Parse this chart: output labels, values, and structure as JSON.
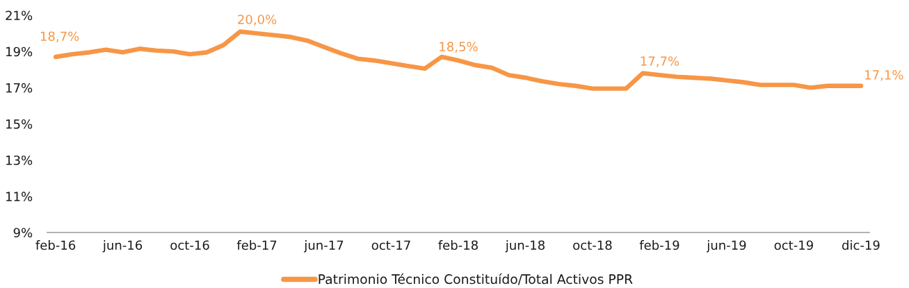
{
  "chart_data": {
    "type": "line",
    "categories": [
      "feb-16",
      null,
      null,
      null,
      "jun-16",
      null,
      null,
      null,
      "oct-16",
      null,
      null,
      null,
      "feb-17",
      null,
      null,
      null,
      "jun-17",
      null,
      null,
      null,
      "oct-17",
      null,
      null,
      null,
      "feb-18",
      null,
      null,
      null,
      "jun-18",
      null,
      null,
      null,
      "oct-18",
      null,
      null,
      null,
      "feb-19",
      null,
      null,
      null,
      "jun-19",
      null,
      null,
      null,
      "oct-19",
      null,
      null,
      null,
      "dic-19"
    ],
    "series": [
      {
        "name": "Patrimonio Técnico Constituído/Total Activos PPR",
        "color": "#f79646",
        "values": [
          18.7,
          18.85,
          18.95,
          19.1,
          18.95,
          19.15,
          19.05,
          19.0,
          18.85,
          18.95,
          19.35,
          20.1,
          20.0,
          19.9,
          19.8,
          19.6,
          19.25,
          18.9,
          18.6,
          18.5,
          18.35,
          18.2,
          18.05,
          18.7,
          18.5,
          18.25,
          18.1,
          17.7,
          17.55,
          17.35,
          17.2,
          17.1,
          16.95,
          16.95,
          16.95,
          17.8,
          17.7,
          17.6,
          17.55,
          17.5,
          17.4,
          17.3,
          17.15,
          17.15,
          17.15,
          17.0,
          17.1,
          17.1,
          17.1
        ],
        "value_labels": [
          "18,7%",
          null,
          null,
          null,
          null,
          null,
          null,
          null,
          null,
          null,
          null,
          null,
          "20,0%",
          null,
          null,
          null,
          null,
          null,
          null,
          null,
          null,
          null,
          null,
          null,
          "18,5%",
          null,
          null,
          null,
          null,
          null,
          null,
          null,
          null,
          null,
          null,
          null,
          "17,7%",
          null,
          null,
          null,
          null,
          null,
          null,
          null,
          null,
          null,
          null,
          null,
          "17,1%"
        ]
      }
    ],
    "ylim": [
      9,
      21
    ],
    "yticks": [
      {
        "value": 9,
        "label": "9%"
      },
      {
        "value": 11,
        "label": "11%"
      },
      {
        "value": 13,
        "label": "13%"
      },
      {
        "value": 15,
        "label": "15%"
      },
      {
        "value": 17,
        "label": "17%"
      },
      {
        "value": 19,
        "label": "19%"
      },
      {
        "value": 21,
        "label": "21%"
      }
    ],
    "legend": "bottom",
    "marker": "none",
    "line_style": "solid"
  }
}
